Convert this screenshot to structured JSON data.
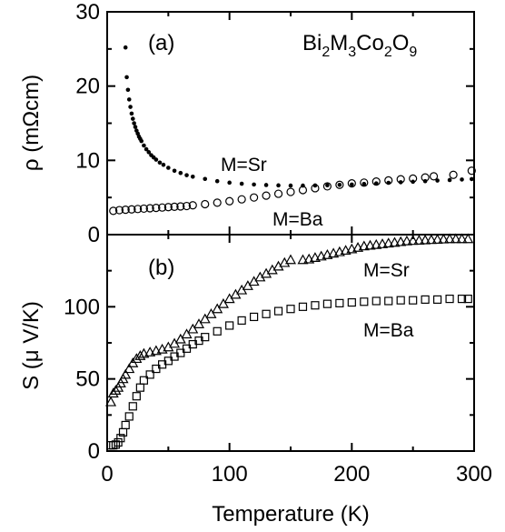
{
  "chart_data": [
    {
      "type": "scatter",
      "panel_label": "(a)",
      "annotation": {
        "base": [
          "Bi",
          "M",
          "Co",
          "O"
        ],
        "subs": [
          "2",
          "3",
          "2",
          "9"
        ]
      },
      "xlabel": "",
      "ylabel": "ρ (mΩcm)",
      "xlim": [
        0,
        300
      ],
      "ylim": [
        0,
        30
      ],
      "yticks": [
        "0",
        "10",
        "20",
        "30"
      ],
      "series": [
        {
          "name": "M=Sr",
          "marker": "filled-circle",
          "x": [
            15,
            16,
            17,
            18,
            19,
            20,
            21,
            22,
            23,
            24,
            25,
            26,
            27,
            28,
            30,
            32,
            34,
            36,
            38,
            40,
            43,
            46,
            50,
            55,
            60,
            65,
            70,
            80,
            90,
            100,
            110,
            120,
            130,
            140,
            150,
            160,
            170,
            180,
            190,
            200,
            210,
            220,
            230,
            240,
            250,
            260,
            270,
            280,
            290,
            298
          ],
          "values": [
            25.2,
            21.2,
            19.5,
            18.2,
            17.2,
            16.3,
            15.6,
            15.0,
            14.5,
            14.0,
            13.6,
            13.2,
            12.9,
            12.6,
            12.0,
            11.5,
            11.1,
            10.7,
            10.4,
            10.1,
            9.7,
            9.4,
            9.0,
            8.6,
            8.3,
            8.0,
            7.8,
            7.5,
            7.2,
            7.0,
            6.85,
            6.75,
            6.68,
            6.63,
            6.6,
            6.6,
            6.62,
            6.65,
            6.7,
            6.75,
            6.82,
            6.9,
            6.98,
            7.05,
            7.12,
            7.2,
            7.28,
            7.35,
            7.42,
            7.48
          ]
        },
        {
          "name": "M=Ba",
          "marker": "open-circle",
          "x": [
            5,
            10,
            15,
            20,
            25,
            30,
            35,
            40,
            45,
            50,
            55,
            60,
            65,
            70,
            80,
            90,
            100,
            110,
            120,
            130,
            140,
            150,
            160,
            170,
            180,
            190,
            200,
            210,
            220,
            230,
            240,
            250,
            260,
            267,
            283,
            298
          ],
          "values": [
            3.2,
            3.3,
            3.35,
            3.4,
            3.45,
            3.5,
            3.55,
            3.6,
            3.65,
            3.7,
            3.75,
            3.8,
            3.85,
            3.95,
            4.1,
            4.3,
            4.5,
            4.75,
            5.0,
            5.25,
            5.5,
            5.75,
            6.0,
            6.25,
            6.5,
            6.7,
            6.9,
            7.0,
            7.15,
            7.3,
            7.45,
            7.55,
            7.7,
            7.85,
            8.05,
            8.6
          ]
        }
      ]
    },
    {
      "type": "scatter",
      "panel_label": "(b)",
      "xlabel": "Temperature (K)",
      "ylabel": "S (μ V/K)",
      "xlim": [
        0,
        300
      ],
      "ylim": [
        0,
        150
      ],
      "xticks": [
        "0",
        "100",
        "200",
        "300"
      ],
      "yticks": [
        "0",
        "50",
        "100"
      ],
      "series": [
        {
          "name": "M=Sr",
          "marker": "open-triangle",
          "x": [
            3,
            5,
            7,
            9,
            11,
            13,
            15,
            18,
            21,
            24,
            27,
            30,
            35,
            40,
            45,
            50,
            55,
            60,
            65,
            70,
            75,
            80,
            85,
            90,
            95,
            100,
            105,
            110,
            115,
            120,
            125,
            130,
            135,
            140,
            145,
            150,
            160,
            165,
            170,
            175,
            180,
            185,
            190,
            195,
            200,
            205,
            210,
            215,
            220,
            225,
            230,
            235,
            240,
            245,
            250,
            255,
            260,
            265,
            270,
            275,
            280,
            285,
            290,
            295
          ],
          "values": [
            34,
            40,
            42,
            44,
            47,
            50,
            53,
            57,
            61,
            64,
            66,
            67.5,
            68.5,
            69.5,
            70.5,
            72,
            74.5,
            77.5,
            81,
            84.5,
            88,
            91.5,
            95,
            98.5,
            102,
            105.5,
            108.5,
            111.5,
            114.5,
            117.5,
            120.5,
            123,
            125.5,
            128,
            130.5,
            132.5,
            132.5,
            133,
            134,
            135,
            136,
            137,
            138,
            139,
            140,
            141,
            142,
            142.5,
            143,
            143.5,
            144,
            144.5,
            145,
            145.5,
            145.8,
            146,
            146.2,
            146.4,
            146.6,
            146.8,
            147,
            147,
            147,
            147
          ]
        },
        {
          "name": "M=Ba",
          "marker": "open-square",
          "x": [
            3,
            5,
            7,
            9,
            11,
            13,
            15,
            18,
            21,
            24,
            27,
            30,
            35,
            40,
            45,
            50,
            55,
            60,
            65,
            70,
            75,
            80,
            90,
            100,
            110,
            120,
            130,
            140,
            150,
            160,
            170,
            180,
            190,
            200,
            210,
            220,
            230,
            240,
            250,
            260,
            270,
            280,
            290,
            295
          ],
          "values": [
            4,
            4,
            4.5,
            6,
            9,
            13,
            18,
            24,
            31,
            38,
            44,
            49,
            53,
            57,
            60,
            62.5,
            65.5,
            68,
            71,
            74,
            76.5,
            79,
            83,
            87,
            90.5,
            93,
            95,
            97,
            98.5,
            100,
            101,
            102,
            102.5,
            103,
            103.5,
            104,
            104,
            104.5,
            104.5,
            105,
            105,
            105.5,
            105.5,
            105.5
          ]
        }
      ]
    }
  ]
}
